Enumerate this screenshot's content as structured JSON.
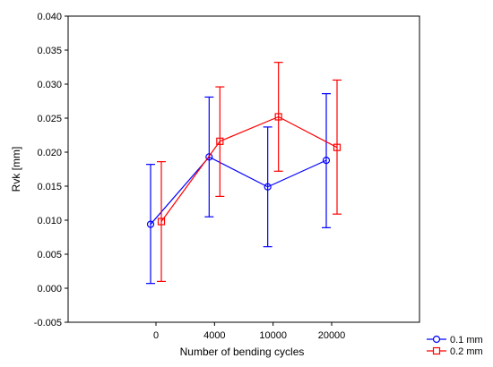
{
  "chart_data": {
    "type": "line",
    "title": "",
    "xlabel": "Number of bending cycles",
    "ylabel": "Rvk  [mm]",
    "categories": [
      "0",
      "4000",
      "10000",
      "20000"
    ],
    "ylim": [
      -0.005,
      0.04
    ],
    "yticks": [
      "-0.005",
      "0.000",
      "0.005",
      "0.010",
      "0.015",
      "0.020",
      "0.025",
      "0.030",
      "0.035",
      "0.040"
    ],
    "grid": false,
    "legend_position": "bottom-right",
    "series": [
      {
        "name": "0.1 mm",
        "color": "#0000ff",
        "marker": "circle",
        "values": [
          0.0094,
          0.0193,
          0.0149,
          0.0188
        ],
        "lower": [
          0.0007,
          0.0105,
          0.0061,
          0.0089
        ],
        "upper": [
          0.0182,
          0.0281,
          0.0237,
          0.0286
        ]
      },
      {
        "name": "0.2 mm",
        "color": "#ff0000",
        "marker": "square",
        "values": [
          0.0098,
          0.0216,
          0.0252,
          0.0207
        ],
        "lower": [
          0.001,
          0.0135,
          0.0172,
          0.0109
        ],
        "upper": [
          0.0186,
          0.0296,
          0.0332,
          0.0306
        ]
      }
    ]
  }
}
